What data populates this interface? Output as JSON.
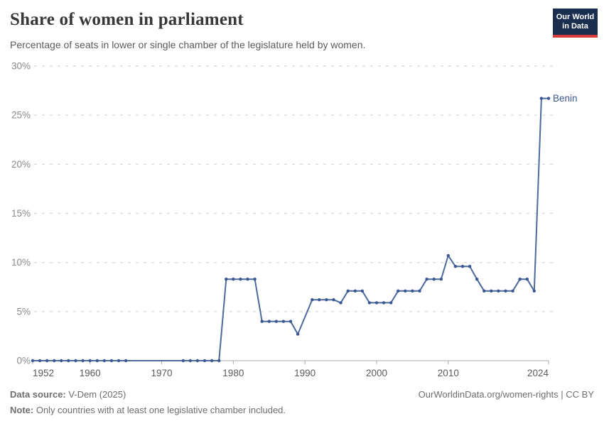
{
  "header": {
    "title": "Share of women in parliament",
    "subtitle": "Percentage of seats in lower or single chamber of the legislature held by women.",
    "logo_line1": "Our World",
    "logo_line2": "in Data"
  },
  "chart_data": {
    "type": "line",
    "title": "Share of women in parliament",
    "subtitle": "Percentage of seats in lower or single chamber of the legislature held by women.",
    "xlabel": "",
    "ylabel": "",
    "xlim": [
      1952,
      2024
    ],
    "ylim": [
      0,
      30
    ],
    "x_ticks": [
      1952,
      1960,
      1970,
      1980,
      1990,
      2000,
      2010,
      2024
    ],
    "y_ticks": [
      0,
      5,
      10,
      15,
      20,
      25,
      30
    ],
    "y_tick_suffix": "%",
    "grid": "horizontal-dashed",
    "legend_position": "end-of-line-label",
    "series": [
      {
        "name": "Benin",
        "points": [
          [
            1952,
            0
          ],
          [
            1953,
            0
          ],
          [
            1954,
            0
          ],
          [
            1955,
            0
          ],
          [
            1956,
            0
          ],
          [
            1957,
            0
          ],
          [
            1958,
            0
          ],
          [
            1959,
            0
          ],
          [
            1960,
            0
          ],
          [
            1961,
            0
          ],
          [
            1962,
            0
          ],
          [
            1963,
            0
          ],
          [
            1964,
            0
          ],
          [
            1965,
            0
          ],
          [
            1973,
            0
          ],
          [
            1974,
            0
          ],
          [
            1975,
            0
          ],
          [
            1976,
            0
          ],
          [
            1977,
            0
          ],
          [
            1978,
            0
          ],
          [
            1979,
            8.3
          ],
          [
            1980,
            8.3
          ],
          [
            1981,
            8.3
          ],
          [
            1982,
            8.3
          ],
          [
            1983,
            8.3
          ],
          [
            1984,
            4.0
          ],
          [
            1985,
            4.0
          ],
          [
            1986,
            4.0
          ],
          [
            1987,
            4.0
          ],
          [
            1988,
            4.0
          ],
          [
            1989,
            2.7
          ],
          [
            1991,
            6.2
          ],
          [
            1992,
            6.2
          ],
          [
            1993,
            6.2
          ],
          [
            1994,
            6.2
          ],
          [
            1995,
            5.9
          ],
          [
            1996,
            7.1
          ],
          [
            1997,
            7.1
          ],
          [
            1998,
            7.1
          ],
          [
            1999,
            5.9
          ],
          [
            2000,
            5.9
          ],
          [
            2001,
            5.9
          ],
          [
            2002,
            5.9
          ],
          [
            2003,
            7.1
          ],
          [
            2004,
            7.1
          ],
          [
            2005,
            7.1
          ],
          [
            2006,
            7.1
          ],
          [
            2007,
            8.3
          ],
          [
            2008,
            8.3
          ],
          [
            2009,
            8.3
          ],
          [
            2010,
            10.7
          ],
          [
            2011,
            9.6
          ],
          [
            2012,
            9.6
          ],
          [
            2013,
            9.6
          ],
          [
            2014,
            8.3
          ],
          [
            2015,
            7.1
          ],
          [
            2016,
            7.1
          ],
          [
            2017,
            7.1
          ],
          [
            2018,
            7.1
          ],
          [
            2019,
            7.1
          ],
          [
            2020,
            8.3
          ],
          [
            2021,
            8.3
          ],
          [
            2022,
            7.1
          ],
          [
            2023,
            26.7
          ],
          [
            2024,
            26.7
          ]
        ]
      }
    ],
    "end_label": "Benin"
  },
  "colors": {
    "line": "#4c6a9c",
    "marker": "#3a5795",
    "gridline": "#dcdcdc",
    "axis": "#a8a8a8",
    "y_tick_label": "#8a8a8a",
    "x_tick_label": "#5b5b5b",
    "logo_bg": "#1a2e4f",
    "logo_red": "#d93b3b"
  },
  "footer": {
    "source_label": "Data source:",
    "source_value": " V-Dem (2025)",
    "rights": "OurWorldinData.org/women-rights | CC BY",
    "note_label": "Note:",
    "note_value": " Only countries with at least one legislative chamber included."
  }
}
